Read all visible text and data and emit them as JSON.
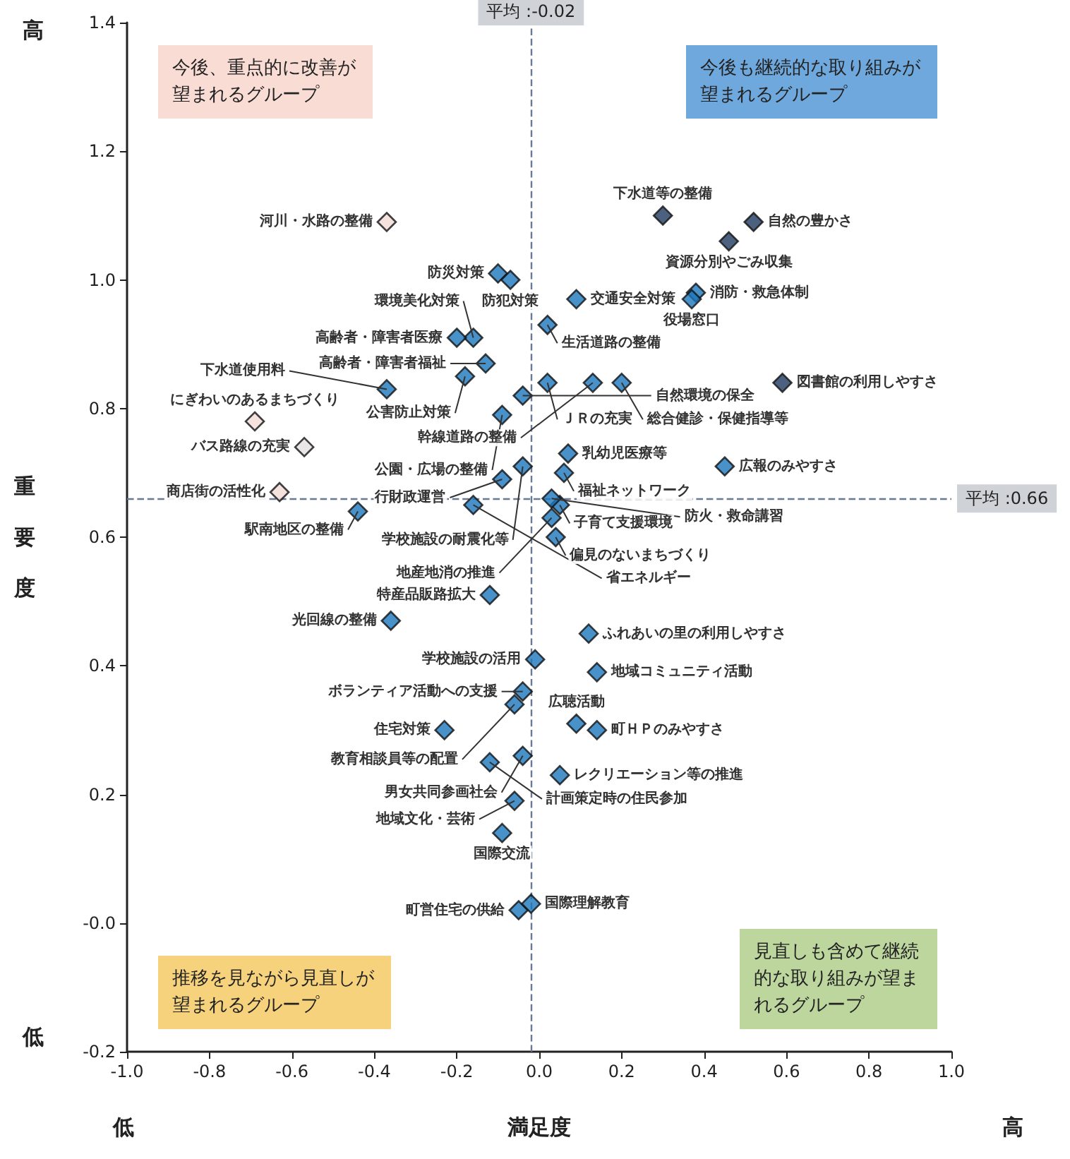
{
  "chart_data": {
    "type": "scatter",
    "xlabel": "満足度",
    "ylabel": "重要度",
    "xlim": [
      -1.0,
      1.0
    ],
    "ylim": [
      -0.2,
      1.4
    ],
    "xticks": [
      {
        "value": -1.0,
        "label": "-1.0"
      },
      {
        "value": -0.8,
        "label": "-0.8"
      },
      {
        "value": -0.6,
        "label": "-0.6"
      },
      {
        "value": -0.4,
        "label": "-0.4"
      },
      {
        "value": -0.2,
        "label": "-0.2"
      },
      {
        "value": 0,
        "label": "0.0"
      },
      {
        "value": 0.2,
        "label": "0.2"
      },
      {
        "value": 0.4,
        "label": "0.4"
      },
      {
        "value": 0.6,
        "label": "0.6"
      },
      {
        "value": 0.8,
        "label": "0.8"
      },
      {
        "value": 1.0,
        "label": "1.0"
      }
    ],
    "yticks": [
      {
        "value": -0.2,
        "label": "-0.2"
      },
      {
        "value": 0,
        "label": "-0.0"
      },
      {
        "value": 0.2,
        "label": "0.2"
      },
      {
        "value": 0.4,
        "label": "0.4"
      },
      {
        "value": 0.6,
        "label": "0.6"
      },
      {
        "value": 0.8,
        "label": "0.8"
      },
      {
        "value": 1.0,
        "label": "1.0"
      },
      {
        "value": 1.2,
        "label": "1.2"
      },
      {
        "value": 1.4,
        "label": "1.4"
      }
    ],
    "grid": false,
    "marker": "diamond",
    "series": [
      {
        "color": "#f2d9d6",
        "x": [
          -0.37,
          -0.69,
          -0.63
        ],
        "values": [
          1.09,
          0.78,
          0.67
        ]
      },
      {
        "color": "#e2e0e0",
        "x": [
          -0.57
        ],
        "values": [
          0.74
        ]
      },
      {
        "color": "#1f3a5f",
        "x": [
          0.3,
          0.52,
          0.46,
          0.59
        ],
        "values": [
          1.1,
          1.09,
          1.06,
          0.84
        ]
      },
      {
        "color": "#1b75bb",
        "x": [
          0.38,
          0.37,
          -0.1,
          -0.07,
          0.09,
          0.02,
          -0.16,
          -0.2,
          -0.13,
          -0.18,
          -0.37,
          0.02,
          0.13,
          0.2,
          -0.04,
          -0.09,
          0.07,
          0.06,
          0.45,
          -0.04,
          -0.09,
          -0.16,
          -0.44,
          0.05,
          0.03,
          0.04,
          0.03,
          -0.12,
          -0.36,
          0.12,
          -0.01,
          0.14,
          -0.04,
          -0.06,
          0.09,
          0.14,
          -0.23,
          -0.04,
          -0.12,
          0.05,
          -0.06,
          -0.09,
          -0.05,
          -0.02
        ],
        "values": [
          0.98,
          0.97,
          1.01,
          1.0,
          0.97,
          0.93,
          0.91,
          0.91,
          0.87,
          0.85,
          0.83,
          0.84,
          0.84,
          0.84,
          0.82,
          0.79,
          0.73,
          0.7,
          0.71,
          0.71,
          0.69,
          0.65,
          0.64,
          0.65,
          0.63,
          0.6,
          0.66,
          0.51,
          0.47,
          0.45,
          0.41,
          0.39,
          0.36,
          0.34,
          0.31,
          0.3,
          0.3,
          0.26,
          0.25,
          0.23,
          0.19,
          0.14,
          0.02,
          0.03
        ]
      }
    ],
    "ref_lines": [
      {
        "axis": "x",
        "value": -0.02,
        "label": "平均 :-0.02",
        "line_style": "dashed"
      },
      {
        "axis": "y",
        "value": 0.66,
        "label": "平均 :0.66",
        "line_style": "dashed"
      }
    ],
    "annotations": [
      "今後、重点的に改善が望まれるグループ",
      "今後も継続的な取り組みが望まれるグループ",
      "推移を見ながら見直しが望まれるグループ",
      "見直しも含めて継続的な取り組みが望まれるグループ",
      "高",
      "低",
      "低",
      "高",
      {
        "text": "河川・水路の整備",
        "x": -0.37,
        "y": 1.09
      },
      {
        "text": "にぎわいのあるまちづくり",
        "x": -0.69,
        "y": 0.78
      },
      {
        "text": "商店街の活性化",
        "x": -0.63,
        "y": 0.67
      },
      {
        "text": "バス路線の充実",
        "x": -0.57,
        "y": 0.74
      },
      {
        "text": "下水道等の整備",
        "x": 0.3,
        "y": 1.1
      },
      {
        "text": "自然の豊かさ",
        "x": 0.52,
        "y": 1.09
      },
      {
        "text": "資源分別やごみ収集",
        "x": 0.46,
        "y": 1.06
      },
      {
        "text": "図書館の利用しやすさ",
        "x": 0.59,
        "y": 0.84
      },
      {
        "text": "消防・救急体制",
        "x": 0.38,
        "y": 0.98
      },
      {
        "text": "役場窓口",
        "x": 0.37,
        "y": 0.97
      },
      {
        "text": "防災対策",
        "x": -0.1,
        "y": 1.01
      },
      {
        "text": "防犯対策",
        "x": -0.07,
        "y": 1.0
      },
      {
        "text": "交通安全対策",
        "x": 0.09,
        "y": 0.97
      },
      {
        "text": "生活道路の整備",
        "x": 0.02,
        "y": 0.93
      },
      {
        "text": "環境美化対策",
        "x": -0.16,
        "y": 0.91
      },
      {
        "text": "高齢者・障害者医療",
        "x": -0.2,
        "y": 0.91
      },
      {
        "text": "高齢者・障害者福祉",
        "x": -0.13,
        "y": 0.87
      },
      {
        "text": "公害防止対策",
        "x": -0.18,
        "y": 0.85
      },
      {
        "text": "下水道使用料",
        "x": -0.37,
        "y": 0.83
      },
      {
        "text": "ＪＲの充実",
        "x": 0.02,
        "y": 0.84
      },
      {
        "text": "幹線道路の整備",
        "x": 0.13,
        "y": 0.84
      },
      {
        "text": "総合健診・保健指導等",
        "x": 0.2,
        "y": 0.84
      },
      {
        "text": "自然環境の保全",
        "x": -0.04,
        "y": 0.82
      },
      {
        "text": "公園・広場の整備",
        "x": -0.09,
        "y": 0.79
      },
      {
        "text": "乳幼児医療等",
        "x": 0.07,
        "y": 0.73
      },
      {
        "text": "福祉ネットワーク",
        "x": 0.06,
        "y": 0.7
      },
      {
        "text": "広報のみやすさ",
        "x": 0.45,
        "y": 0.71
      },
      {
        "text": "学校施設の耐震化等",
        "x": -0.04,
        "y": 0.71
      },
      {
        "text": "行財政運営",
        "x": -0.09,
        "y": 0.69
      },
      {
        "text": "省エネルギー",
        "x": -0.16,
        "y": 0.65
      },
      {
        "text": "駅南地区の整備",
        "x": -0.44,
        "y": 0.64
      },
      {
        "text": "子育て支援環境",
        "x": 0.05,
        "y": 0.65
      },
      {
        "text": "地産地消の推進",
        "x": 0.03,
        "y": 0.63
      },
      {
        "text": "偏見のないまちづくり",
        "x": 0.04,
        "y": 0.6
      },
      {
        "text": "防火・救命講習",
        "x": 0.03,
        "y": 0.66
      },
      {
        "text": "特産品販路拡大",
        "x": -0.12,
        "y": 0.51
      },
      {
        "text": "光回線の整備",
        "x": -0.36,
        "y": 0.47
      },
      {
        "text": "ふれあいの里の利用しやすさ",
        "x": 0.12,
        "y": 0.45
      },
      {
        "text": "学校施設の活用",
        "x": -0.01,
        "y": 0.41
      },
      {
        "text": "地域コミュニティ活動",
        "x": 0.14,
        "y": 0.39
      },
      {
        "text": "ボランティア活動への支援",
        "x": -0.04,
        "y": 0.36
      },
      {
        "text": "教育相談員等の配置",
        "x": -0.06,
        "y": 0.34
      },
      {
        "text": "広聴活動",
        "x": 0.09,
        "y": 0.31
      },
      {
        "text": "町ＨＰのみやすさ",
        "x": 0.14,
        "y": 0.3
      },
      {
        "text": "住宅対策",
        "x": -0.23,
        "y": 0.3
      },
      {
        "text": "男女共同参画社会",
        "x": -0.04,
        "y": 0.26
      },
      {
        "text": "計画策定時の住民参加",
        "x": -0.12,
        "y": 0.25
      },
      {
        "text": "レクリエーション等の推進",
        "x": 0.05,
        "y": 0.23
      },
      {
        "text": "地域文化・芸術",
        "x": -0.06,
        "y": 0.19
      },
      {
        "text": "国際交流",
        "x": -0.09,
        "y": 0.14
      },
      {
        "text": "町営住宅の供給",
        "x": -0.05,
        "y": 0.02
      },
      {
        "text": "国際理解教育",
        "x": -0.02,
        "y": 0.03
      }
    ]
  }
}
